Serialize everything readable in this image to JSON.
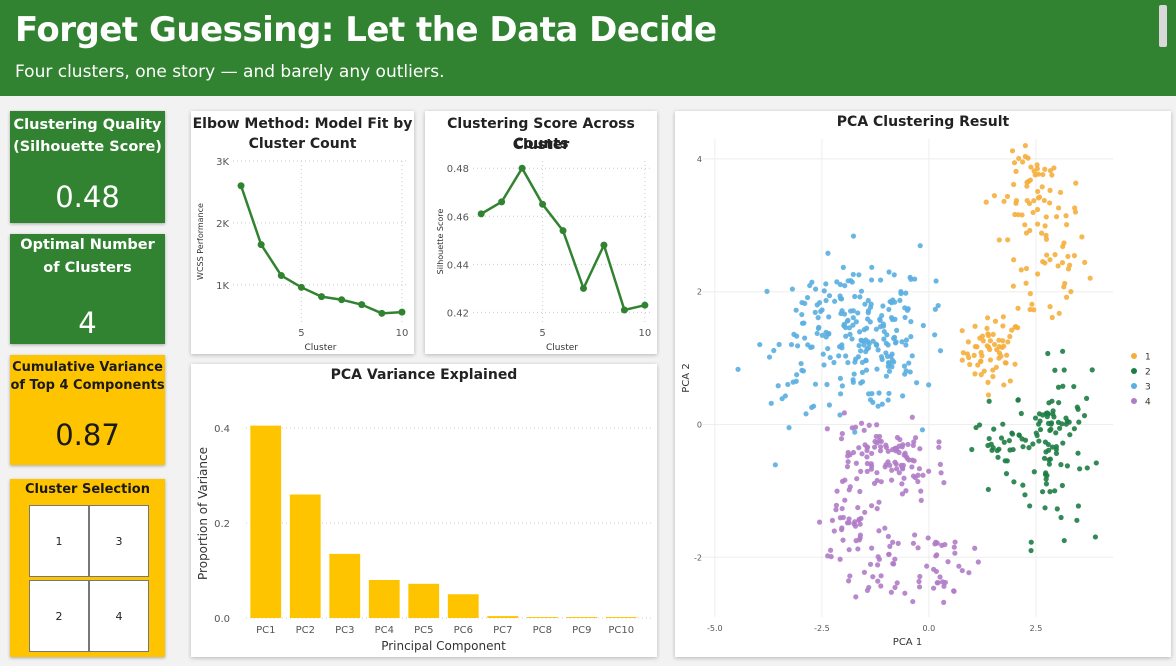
{
  "header": {
    "title": "Forget Guessing: Let the Data Decide",
    "subtitle": "Four clusters, one story — and barely any outliers."
  },
  "kpis": [
    {
      "label_lines": [
        "Clustering Quality",
        "(Silhouette Score)"
      ],
      "value": "0.48"
    },
    {
      "label_lines": [
        "Optimal Number",
        "of Clusters"
      ],
      "value": "4"
    },
    {
      "label_lines": [
        "Cumulative Variance",
        "of Top 4 Components"
      ],
      "value": "0.87"
    }
  ],
  "slicer": {
    "title": "Cluster Selection",
    "options": [
      "1",
      "3",
      "2",
      "4"
    ]
  },
  "colors": {
    "green": "#318331",
    "yellow": "#ffc400",
    "cluster_1": "#f5ae3d",
    "cluster_2": "#1e7d45",
    "cluster_3": "#5aaee0",
    "cluster_4": "#b07cc6"
  },
  "chart_data": [
    {
      "id": "elbow",
      "type": "line",
      "title_lines": [
        "Elbow Method: Model Fit by",
        "Cluster Count"
      ],
      "xlabel": "Cluster",
      "ylabel": "WCSS Performance",
      "x": [
        2,
        3,
        4,
        5,
        6,
        7,
        8,
        9,
        10
      ],
      "values": [
        2600,
        1650,
        1150,
        960,
        810,
        760,
        680,
        540,
        560
      ],
      "xlim": [
        1.6,
        10.3
      ],
      "ylim": [
        400,
        3000
      ],
      "xticks": [
        5,
        10
      ],
      "yticks": [
        1000,
        2000,
        3000
      ],
      "ytick_labels": [
        "1K",
        "2K",
        "3K"
      ],
      "grid": "dotted"
    },
    {
      "id": "silhouette",
      "type": "line",
      "title_lines": [
        "Clustering Score Across Cluster",
        "Counts"
      ],
      "xlabel": "Cluster",
      "ylabel": "Silhouette Score",
      "x": [
        2,
        3,
        4,
        5,
        6,
        7,
        8,
        9,
        10
      ],
      "values": [
        0.461,
        0.466,
        0.48,
        0.465,
        0.454,
        0.43,
        0.448,
        0.421,
        0.423
      ],
      "xlim": [
        1.6,
        10.3
      ],
      "ylim": [
        0.416,
        0.483
      ],
      "xticks": [
        5,
        10
      ],
      "yticks": [
        0.42,
        0.44,
        0.46,
        0.48
      ],
      "ytick_labels": [
        "0.42",
        "0.44",
        "0.46",
        "0.48"
      ],
      "grid": "dotted"
    },
    {
      "id": "variance",
      "type": "bar",
      "title": "PCA Variance Explained",
      "xlabel": "Principal Component",
      "ylabel": "Proportion of Variance",
      "categories": [
        "PC1",
        "PC2",
        "PC3",
        "PC4",
        "PC5",
        "PC6",
        "PC7",
        "PC8",
        "PC9",
        "PC10"
      ],
      "values": [
        0.405,
        0.26,
        0.135,
        0.08,
        0.072,
        0.05,
        0.004,
        0.002,
        0.002,
        0.002
      ],
      "ylim": [
        0,
        0.44
      ],
      "yticks": [
        0,
        0.2,
        0.4
      ],
      "ytick_labels": [
        "0.0",
        "0.2",
        "0.4"
      ],
      "color": "#ffc400",
      "grid": "dotted"
    },
    {
      "id": "scatter",
      "type": "scatter",
      "title": "PCA Clustering Result",
      "xlabel": "PCA 1",
      "ylabel": "PCA 2",
      "xlim": [
        -5.3,
        4.3
      ],
      "ylim": [
        -2.9,
        4.3
      ],
      "xticks": [
        -5,
        -2.5,
        0,
        2.5
      ],
      "xtick_labels": [
        "-5.0",
        "-2.5",
        "0.0",
        "2.5"
      ],
      "yticks": [
        -2,
        0,
        2,
        4
      ],
      "ytick_labels": [
        "-2",
        "0",
        "2",
        "4"
      ],
      "legend": [
        "1",
        "2",
        "3",
        "4"
      ],
      "legend_position": "right",
      "clusters": [
        {
          "name": "1",
          "color": "#f5ae3d",
          "blobs": [
            {
              "cx": 1.5,
              "cy": 1.1,
              "sx": 0.35,
              "sy": 0.25,
              "n": 60
            },
            {
              "cx": 2.6,
              "cy": 2.6,
              "sx": 0.55,
              "sy": 0.7,
              "n": 70
            },
            {
              "cx": 2.4,
              "cy": 3.7,
              "sx": 0.4,
              "sy": 0.3,
              "n": 30
            }
          ]
        },
        {
          "name": "2",
          "color": "#1e7d45",
          "blobs": [
            {
              "cx": 2.8,
              "cy": -0.4,
              "sx": 0.4,
              "sy": 0.65,
              "n": 70
            },
            {
              "cx": 3.1,
              "cy": 0.3,
              "sx": 0.35,
              "sy": 0.3,
              "n": 25
            },
            {
              "cx": 1.8,
              "cy": -0.3,
              "sx": 0.4,
              "sy": 0.2,
              "n": 30
            }
          ]
        },
        {
          "name": "3",
          "color": "#5aaee0",
          "blobs": [
            {
              "cx": -1.5,
              "cy": 1.2,
              "sx": 0.6,
              "sy": 0.5,
              "n": 140
            },
            {
              "cx": -2.5,
              "cy": 1.6,
              "sx": 0.45,
              "sy": 0.4,
              "n": 45
            },
            {
              "cx": -0.5,
              "cy": 1.5,
              "sx": 0.5,
              "sy": 0.5,
              "n": 40
            },
            {
              "cx": -3.3,
              "cy": 0.8,
              "sx": 0.5,
              "sy": 0.35,
              "n": 20
            }
          ]
        },
        {
          "name": "4",
          "color": "#b07cc6",
          "blobs": [
            {
              "cx": -1.5,
              "cy": -0.5,
              "sx": 0.55,
              "sy": 0.3,
              "n": 60
            },
            {
              "cx": -0.5,
              "cy": -0.6,
              "sx": 0.45,
              "sy": 0.3,
              "n": 50
            },
            {
              "cx": -1.8,
              "cy": -1.5,
              "sx": 0.4,
              "sy": 0.3,
              "n": 40
            },
            {
              "cx": -1.2,
              "cy": -2.1,
              "sx": 0.3,
              "sy": 0.3,
              "n": 25
            },
            {
              "cx": 0.2,
              "cy": -2.1,
              "sx": 0.4,
              "sy": 0.3,
              "n": 40
            }
          ]
        }
      ]
    }
  ]
}
